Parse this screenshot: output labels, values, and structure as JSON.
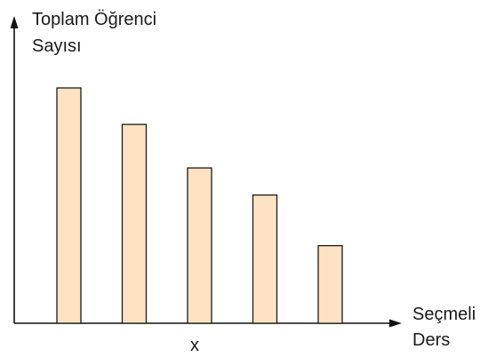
{
  "chart_data": {
    "type": "bar",
    "title": "",
    "ylabel_lines": [
      "Toplam Öğrenci",
      "Sayısı"
    ],
    "xlabel_lines": [
      "Seçmeli",
      "Ders"
    ],
    "x_marker": "x",
    "categories": [
      "",
      "",
      "",
      "",
      ""
    ],
    "values": [
      100,
      84.5,
      66,
      54.5,
      33
    ],
    "ylim": [
      0,
      125
    ],
    "grid": false,
    "legend": "none",
    "bar_fill": "#fde3c3",
    "bar_stroke": "#1a1a1a",
    "axis_color": "#111111"
  }
}
